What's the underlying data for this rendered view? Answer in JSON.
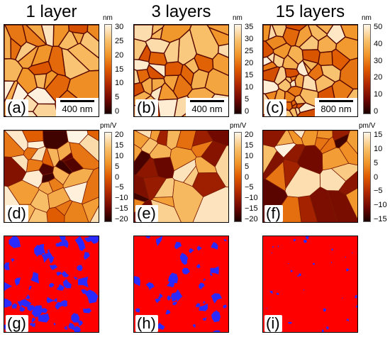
{
  "columns": [
    {
      "title": "1 layer"
    },
    {
      "title": "3 layers"
    },
    {
      "title": "15 layers"
    }
  ],
  "topography": [
    {
      "label": "(a)",
      "scale": "400 nm",
      "unit": "nm",
      "ticks": [
        "30",
        "25",
        "20",
        "15",
        "10",
        "5",
        "0"
      ]
    },
    {
      "label": "(b)",
      "scale": "400 nm",
      "unit": "nm",
      "ticks": [
        "35",
        "30",
        "25",
        "20",
        "15",
        "10",
        "5",
        "0"
      ]
    },
    {
      "label": "(c)",
      "scale": "800 nm",
      "unit": "nm",
      "ticks": [
        "50",
        "40",
        "30",
        "20",
        "10",
        "0"
      ]
    }
  ],
  "piezo": [
    {
      "label": "(d)",
      "unit": "pm/V",
      "ticks": [
        "20",
        "15",
        "10",
        "5",
        "0",
        "−5",
        "−10",
        "−15",
        "−20"
      ]
    },
    {
      "label": "(e)",
      "unit": "pm/V",
      "ticks": [
        "20",
        "15",
        "10",
        "5",
        "0",
        "−5",
        "−10",
        "−15",
        "−20"
      ]
    },
    {
      "label": "(f)",
      "unit": "pm/V",
      "ticks": [
        "15",
        "10",
        "5",
        "0",
        "−5",
        "−10",
        "−15"
      ]
    }
  ],
  "domains": [
    {
      "label": "(g)"
    },
    {
      "label": "(h)"
    },
    {
      "label": "(i)"
    }
  ],
  "colors": {
    "domain_red": "#ff0000",
    "domain_blue": "#2a2aff",
    "heat_dark": "#1a0000",
    "heat_mid": "#df5a00",
    "heat_light": "#fff5e6"
  }
}
